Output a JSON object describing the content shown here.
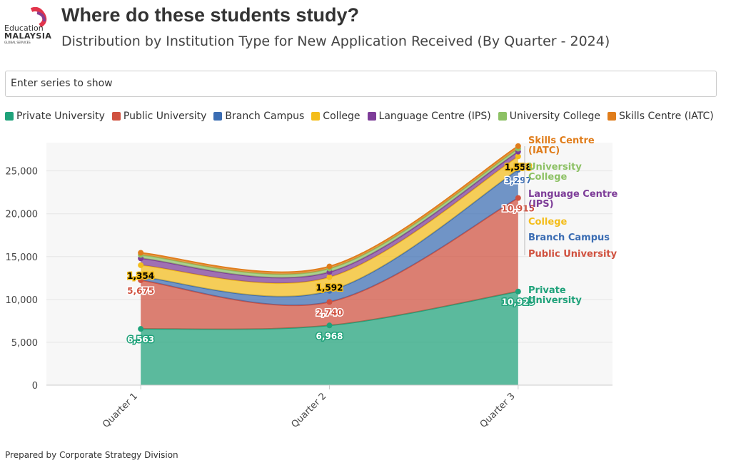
{
  "header": {
    "logo": [
      "Education",
      "MALAYSIA",
      "GLOBAL SERVICES"
    ],
    "title": "Where do these students study?",
    "subtitle": "Distribution by Institution Type for New Application Received (By Quarter - 2024)"
  },
  "search_placeholder": "Enter series to show",
  "footer": "Prepared by Corporate Strategy Division",
  "chart_data": {
    "type": "stacked_area",
    "categories": [
      "Quarter 1",
      "Quarter 2",
      "Quarter 3"
    ],
    "series": [
      {
        "name": "Private University",
        "color": "#1fa27a",
        "values": [
          6563,
          6968,
          10925
        ],
        "value_labels": [
          "6,563",
          "6,968",
          "10,925"
        ]
      },
      {
        "name": "Public University",
        "color": "#d0513f",
        "values": [
          5675,
          2740,
          10915
        ],
        "value_labels": [
          "5,675",
          "2,740",
          "10,915"
        ]
      },
      {
        "name": "Branch Campus",
        "color": "#3b6db3",
        "values": [
          400,
          1300,
          3297
        ],
        "value_labels": [
          null,
          null,
          "3,297"
        ]
      },
      {
        "name": "College",
        "color": "#f4bd1a",
        "values": [
          1354,
          1592,
          1558
        ],
        "value_labels": [
          "1,354",
          "1,592",
          "1,558"
        ]
      },
      {
        "name": "Language Centre (IPS)",
        "color": "#7d3c98",
        "values": [
          800,
          600,
          550
        ]
      },
      {
        "name": "University College",
        "color": "#8dc165",
        "values": [
          400,
          400,
          350
        ]
      },
      {
        "name": "Skills Centre (IATC)",
        "color": "#e07d1b",
        "values": [
          250,
          250,
          300
        ]
      }
    ],
    "ylim": [
      0,
      28300
    ],
    "yticks": [
      0,
      {
        "value": 5000,
        "label": "5,000"
      },
      {
        "value": 10000,
        "label": "10,000"
      },
      {
        "value": 15000,
        "label": "15,000"
      },
      {
        "value": 20000,
        "label": "20,000"
      },
      {
        "value": 25000,
        "label": "25,000"
      }
    ],
    "grid": true,
    "legend": "top"
  }
}
